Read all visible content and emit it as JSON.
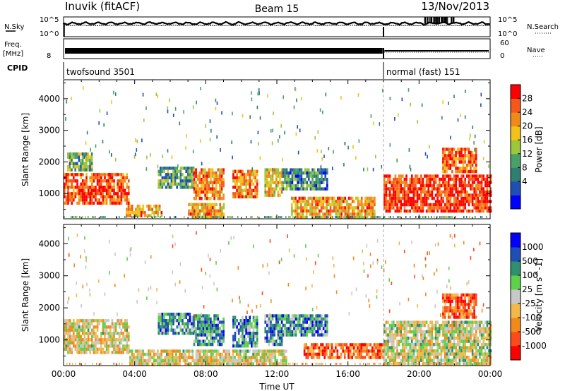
{
  "header": {
    "station": "Inuvik (fitACF)",
    "beam": "Beam 15",
    "date": "13/Nov/2013"
  },
  "strips": {
    "nsky_label": "N.Sky",
    "nsky_tick_top": "10^5",
    "nsky_tick_bot": "10^0",
    "nsearch_label": "N.Search",
    "nsearch_tick_top": "10^5",
    "nsearch_tick_bot": "10^0",
    "freq_label_top": "Freq.",
    "freq_label_unit": "[MHz]",
    "freq_tick_top": "",
    "freq_tick_bot": "8",
    "nave_label": "Nave",
    "nave_tick_top": "60",
    "nave_tick_bot": "0",
    "cpid_label": "CPID",
    "cpid_modes": [
      {
        "name": "twofsound 3501",
        "start_hour": 0,
        "end_hour": 18
      },
      {
        "name": "normal (fast) 151",
        "start_hour": 18,
        "end_hour": 24
      }
    ]
  },
  "chart_data": [
    {
      "type": "heatmap",
      "title": "",
      "ylabel": "Slant Range [km]",
      "xlabel": "",
      "xlim": [
        0,
        24
      ],
      "ylim": [
        200,
        4600
      ],
      "yticks": [
        1000,
        2000,
        3000,
        4000
      ],
      "colorbar": {
        "label": "Power [dB]",
        "ticks": [
          "28",
          "24",
          "20",
          "16",
          "12",
          "8",
          "4"
        ],
        "range": [
          0,
          30
        ],
        "colors": [
          "#0000ff",
          "#1f4fb5",
          "#2f7f6f",
          "#4aa06a",
          "#9ac83a",
          "#f2c21a",
          "#f28a1a",
          "#f25a1a",
          "#ff0000"
        ]
      },
      "echo_regions": [
        {
          "start": 0.0,
          "end": 3.7,
          "rmin": 650,
          "rmax": 1650,
          "level": 0.85
        },
        {
          "start": 0.2,
          "end": 1.6,
          "rmin": 1700,
          "rmax": 2300,
          "level": 0.4
        },
        {
          "start": 3.5,
          "end": 5.5,
          "rmin": 250,
          "rmax": 650,
          "level": 0.7
        },
        {
          "start": 5.3,
          "end": 7.3,
          "rmin": 1200,
          "rmax": 1850,
          "level": 0.35
        },
        {
          "start": 7.3,
          "end": 9.0,
          "rmin": 850,
          "rmax": 1800,
          "level": 0.75
        },
        {
          "start": 9.5,
          "end": 10.9,
          "rmin": 850,
          "rmax": 1750,
          "level": 0.75
        },
        {
          "start": 11.3,
          "end": 12.3,
          "rmin": 900,
          "rmax": 1800,
          "level": 0.6
        },
        {
          "start": 12.3,
          "end": 14.8,
          "rmin": 1150,
          "rmax": 1800,
          "level": 0.3
        },
        {
          "start": 7.0,
          "end": 9.0,
          "rmin": 250,
          "rmax": 700,
          "level": 0.7
        },
        {
          "start": 12.8,
          "end": 17.5,
          "rmin": 250,
          "rmax": 900,
          "level": 0.7
        },
        {
          "start": 18.0,
          "end": 24.0,
          "rmin": 400,
          "rmax": 1600,
          "level": 0.9
        },
        {
          "start": 21.3,
          "end": 23.2,
          "rmin": 1700,
          "rmax": 2450,
          "level": 0.8
        }
      ]
    },
    {
      "type": "heatmap",
      "title": "",
      "ylabel": "Slant Range [km]",
      "xlabel": "Time UT",
      "xlim": [
        0,
        24
      ],
      "ylim": [
        200,
        4600
      ],
      "xticks": [
        "00:00",
        "04:00",
        "08:00",
        "12:00",
        "16:00",
        "20:00",
        "00:00"
      ],
      "yticks": [
        1000,
        2000,
        3000,
        4000
      ],
      "colorbar": {
        "label": "Velocity [m s^-1]",
        "ticks": [
          "1000",
          "500",
          "100",
          "25",
          "-25",
          "-100",
          "-500",
          "-1000"
        ],
        "range": [
          -1000,
          1000
        ],
        "colors": [
          "#ff0000",
          "#ff4a1a",
          "#f28a1a",
          "#f2b84a",
          "#c8c8c8",
          "#5fd04a",
          "#2f8f6f",
          "#1f4fb5",
          "#0000ff"
        ]
      },
      "echo_regions": [
        {
          "start": 0.0,
          "end": 3.7,
          "rmin": 650,
          "rmax": 1650,
          "level": 0.45
        },
        {
          "start": 3.7,
          "end": 12.5,
          "rmin": 250,
          "rmax": 700,
          "level": 0.45
        },
        {
          "start": 5.3,
          "end": 7.3,
          "rmin": 1200,
          "rmax": 1850,
          "level": 0.7
        },
        {
          "start": 7.3,
          "end": 9.0,
          "rmin": 850,
          "rmax": 1800,
          "level": 0.72
        },
        {
          "start": 9.5,
          "end": 10.9,
          "rmin": 850,
          "rmax": 1750,
          "level": 0.72
        },
        {
          "start": 11.3,
          "end": 12.3,
          "rmin": 900,
          "rmax": 1800,
          "level": 0.72
        },
        {
          "start": 12.3,
          "end": 14.8,
          "rmin": 1150,
          "rmax": 1800,
          "level": 0.72
        },
        {
          "start": 13.5,
          "end": 18.0,
          "rmin": 450,
          "rmax": 900,
          "level": 0.2
        },
        {
          "start": 18.0,
          "end": 24.0,
          "rmin": 300,
          "rmax": 1600,
          "level": 0.5
        },
        {
          "start": 21.3,
          "end": 23.2,
          "rmin": 1700,
          "rmax": 2450,
          "level": 0.2
        }
      ]
    }
  ]
}
